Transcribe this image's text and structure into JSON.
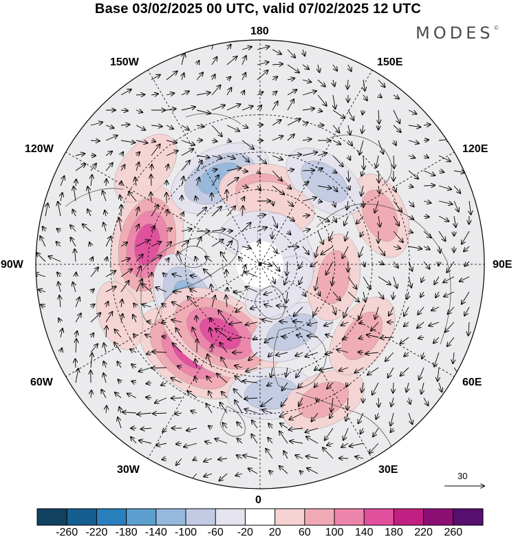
{
  "title": "Base 03/02/2025 00 UTC, valid 07/02/2025 12 UTC",
  "brand": {
    "name": "MODES",
    "mark": "©"
  },
  "longitude_labels": {
    "top": "180",
    "bottom": "0",
    "left": "90W",
    "right": "90E",
    "upper_left_1": "150W",
    "upper_left_2": "120W",
    "upper_right_1": "150E",
    "upper_right_2": "120E",
    "lower_left_1": "60W",
    "lower_left_2": "30W",
    "lower_right_1": "60E",
    "lower_right_2": "30E"
  },
  "reference_vector": {
    "label": "30"
  },
  "colorbar": {
    "ticks": [
      "-260",
      "-220",
      "-180",
      "-140",
      "-100",
      "-60",
      "-20",
      "20",
      "60",
      "100",
      "140",
      "180",
      "220",
      "260"
    ],
    "colors": [
      "#10415f",
      "#155e90",
      "#2a7fbd",
      "#5b9fcf",
      "#95b8dc",
      "#c2cbe3",
      "#e4e3ef",
      "#ffffff",
      "#f6d3d3",
      "#f0aab3",
      "#ec84ab",
      "#e0509d",
      "#c21f82",
      "#8b0f72",
      "#570f6e"
    ]
  },
  "anomaly_centers": [
    {
      "lon": -100,
      "lat": 44,
      "value": 140
    },
    {
      "lon": -155,
      "lat": 52,
      "value": -100
    },
    {
      "lon": 178,
      "lat": 60,
      "value": 60
    },
    {
      "lon": -62,
      "lat": 58,
      "value": -100
    },
    {
      "lon": -38,
      "lat": 45,
      "value": 140
    },
    {
      "lon": -30,
      "lat": 58,
      "value": 160
    },
    {
      "lon": 5,
      "lat": 38,
      "value": -60
    },
    {
      "lon": 25,
      "lat": 30,
      "value": 60
    },
    {
      "lon": 25,
      "lat": 60,
      "value": -60
    },
    {
      "lon": 80,
      "lat": 60,
      "value": 60
    },
    {
      "lon": 55,
      "lat": 40,
      "value": 60
    },
    {
      "lon": 112,
      "lat": 38,
      "value": 60
    },
    {
      "lon": 142,
      "lat": 48,
      "value": -60
    },
    {
      "lon": 165,
      "lat": 66,
      "value": 40
    },
    {
      "lon": -178,
      "lat": 78,
      "value": -40
    },
    {
      "lon": 120,
      "lat": 78,
      "value": -40
    },
    {
      "lon": -130,
      "lat": 30,
      "value": 40
    },
    {
      "lon": -70,
      "lat": 30,
      "value": 20
    },
    {
      "lon": 40,
      "lat": 78,
      "value": -40
    }
  ]
}
